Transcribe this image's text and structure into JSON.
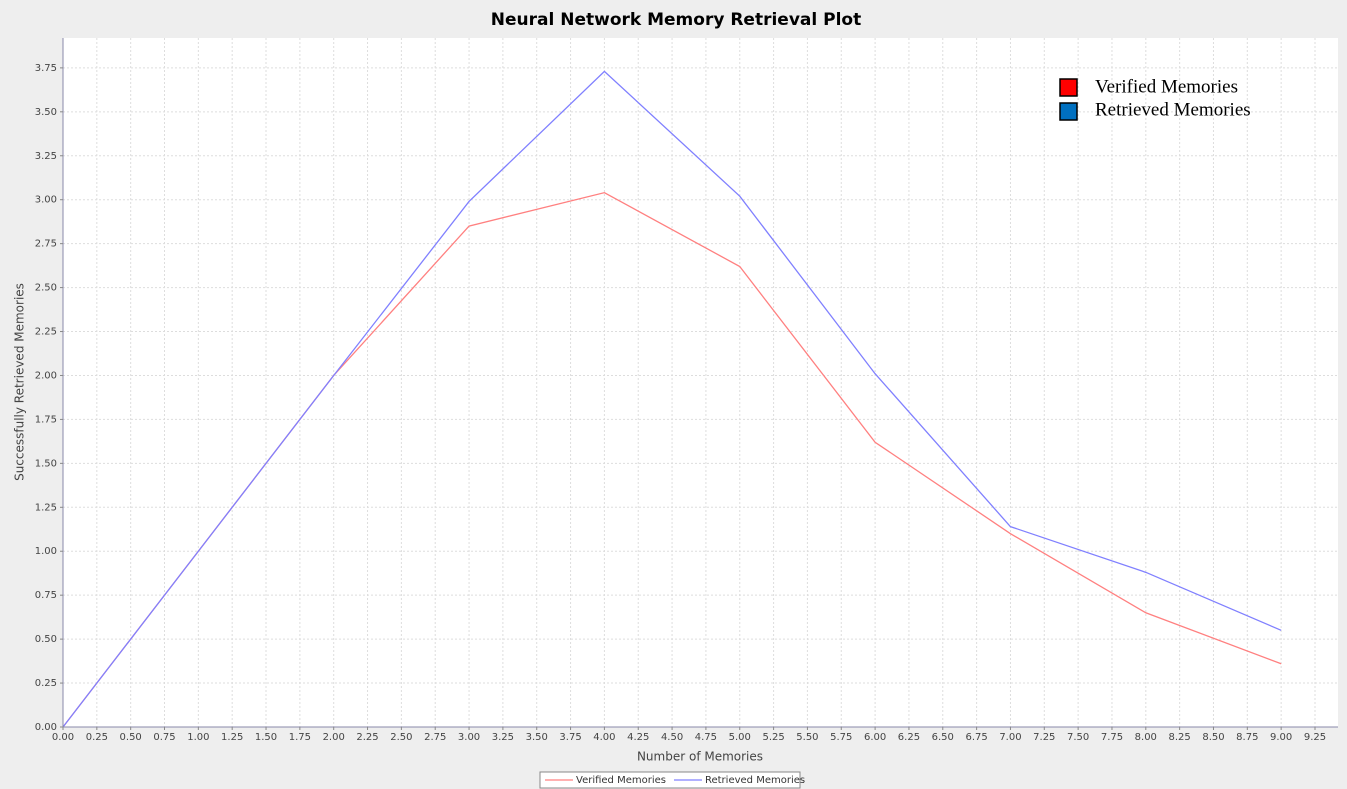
{
  "chart_data": {
    "type": "line",
    "title": "Neural Network Memory Retrieval Plot",
    "x_label": "Number of Memories",
    "y_label": "Successfully Retrieved Memories",
    "x": [
      0,
      1,
      2,
      3,
      4,
      5,
      6,
      7,
      8,
      9
    ],
    "series": [
      {
        "name": "Verified Memories",
        "color": "#ff8080",
        "values": [
          0,
          1,
          2,
          2.85,
          3.04,
          2.62,
          1.62,
          1.1,
          0.65,
          0.36
        ]
      },
      {
        "name": "Retrieved Memories",
        "color": "#8080ff",
        "values": [
          0,
          1,
          2,
          2.99,
          3.73,
          3.02,
          2.01,
          1.14,
          0.88,
          0.55
        ]
      }
    ],
    "xlim": [
      0,
      9.42
    ],
    "ylim": [
      0,
      3.92
    ],
    "xticks": [
      {
        "value": 0,
        "label": "0.00"
      },
      {
        "value": 0.25,
        "label": "0.25"
      },
      {
        "value": 0.5,
        "label": "0.50"
      },
      {
        "value": 0.75,
        "label": "0.75"
      },
      {
        "value": 1,
        "label": "1.00"
      },
      {
        "value": 1.25,
        "label": "1.25"
      },
      {
        "value": 1.5,
        "label": "1.50"
      },
      {
        "value": 1.75,
        "label": "1.75"
      },
      {
        "value": 2,
        "label": "2.00"
      },
      {
        "value": 2.25,
        "label": "2.25"
      },
      {
        "value": 2.5,
        "label": "2.50"
      },
      {
        "value": 2.75,
        "label": "2.75"
      },
      {
        "value": 3,
        "label": "3.00"
      },
      {
        "value": 3.25,
        "label": "3.25"
      },
      {
        "value": 3.5,
        "label": "3.50"
      },
      {
        "value": 3.75,
        "label": "3.75"
      },
      {
        "value": 4,
        "label": "4.00"
      },
      {
        "value": 4.25,
        "label": "4.25"
      },
      {
        "value": 4.5,
        "label": "4.50"
      },
      {
        "value": 4.75,
        "label": "4.75"
      },
      {
        "value": 5,
        "label": "5.00"
      },
      {
        "value": 5.25,
        "label": "5.25"
      },
      {
        "value": 5.5,
        "label": "5.50"
      },
      {
        "value": 5.75,
        "label": "5.75"
      },
      {
        "value": 6,
        "label": "6.00"
      },
      {
        "value": 6.25,
        "label": "6.25"
      },
      {
        "value": 6.5,
        "label": "6.50"
      },
      {
        "value": 6.75,
        "label": "6.75"
      },
      {
        "value": 7,
        "label": "7.00"
      },
      {
        "value": 7.25,
        "label": "7.25"
      },
      {
        "value": 7.5,
        "label": "7.50"
      },
      {
        "value": 7.75,
        "label": "7.75"
      },
      {
        "value": 8,
        "label": "8.00"
      },
      {
        "value": 8.25,
        "label": "8.25"
      },
      {
        "value": 8.5,
        "label": "8.50"
      },
      {
        "value": 8.75,
        "label": "8.75"
      },
      {
        "value": 9,
        "label": "9.00"
      },
      {
        "value": 9.25,
        "label": "9.25"
      }
    ],
    "yticks": [
      {
        "value": 0,
        "label": "0.00"
      },
      {
        "value": 0.25,
        "label": "0.25"
      },
      {
        "value": 0.5,
        "label": "0.50"
      },
      {
        "value": 0.75,
        "label": "0.75"
      },
      {
        "value": 1,
        "label": "1.00"
      },
      {
        "value": 1.25,
        "label": "1.25"
      },
      {
        "value": 1.5,
        "label": "1.50"
      },
      {
        "value": 1.75,
        "label": "1.75"
      },
      {
        "value": 2,
        "label": "2.00"
      },
      {
        "value": 2.25,
        "label": "2.25"
      },
      {
        "value": 2.5,
        "label": "2.50"
      },
      {
        "value": 2.75,
        "label": "2.75"
      },
      {
        "value": 3,
        "label": "3.00"
      },
      {
        "value": 3.25,
        "label": "3.25"
      },
      {
        "value": 3.5,
        "label": "3.50"
      },
      {
        "value": 3.75,
        "label": "3.75"
      }
    ],
    "grid": true
  }
}
